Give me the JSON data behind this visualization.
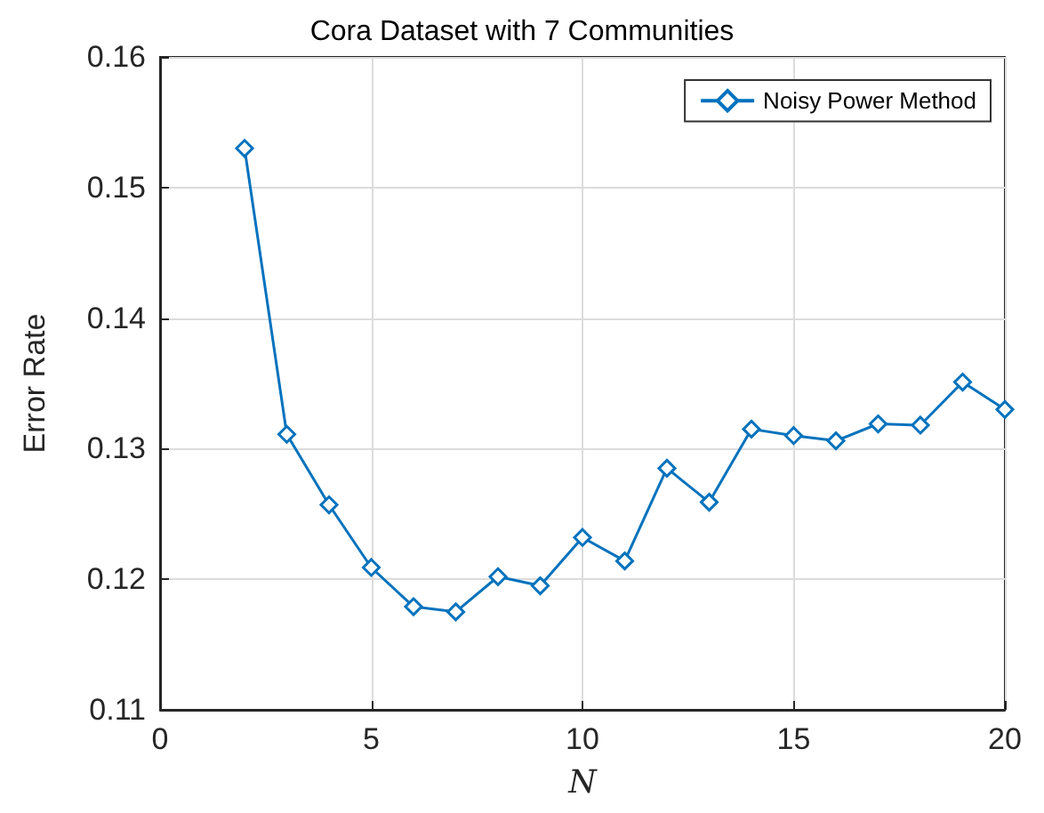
{
  "chart_data": {
    "type": "line",
    "title": "Cora Dataset with 7 Communities",
    "xlabel": "N",
    "ylabel": "Error Rate",
    "x": [
      2,
      3,
      4,
      5,
      6,
      7,
      8,
      9,
      10,
      11,
      12,
      13,
      14,
      15,
      16,
      17,
      18,
      19,
      20
    ],
    "series": [
      {
        "name": "Noisy Power Method",
        "color": "#0072bd",
        "values": [
          0.153,
          0.1311,
          0.1257,
          0.1209,
          0.1179,
          0.1175,
          0.1202,
          0.1195,
          0.1232,
          0.1214,
          0.1285,
          0.1259,
          0.1315,
          0.131,
          0.1306,
          0.1319,
          0.1318,
          0.1351,
          0.133
        ]
      }
    ],
    "xlim": [
      0,
      20
    ],
    "xticks": [
      0,
      5,
      10,
      15,
      20
    ],
    "ylim": [
      0.11,
      0.16
    ],
    "yticks": [
      0.11,
      0.12,
      0.13,
      0.14,
      0.15,
      0.16
    ],
    "grid": true,
    "legend": "top right",
    "marker": "diamond",
    "line_style": "solid"
  }
}
